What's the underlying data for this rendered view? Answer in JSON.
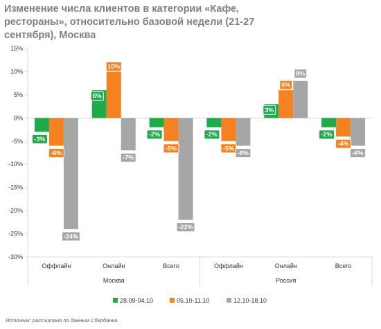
{
  "chart_data": {
    "type": "bar",
    "title": "Изменение числа клиентов в категории «Кафе, рестораны», относительно базовой недели (21-27 сентября), Москва",
    "ylim": [
      -30,
      15
    ],
    "yticks": [
      15,
      10,
      5,
      0,
      -5,
      -10,
      -15,
      -20,
      -25,
      -30
    ],
    "ytick_labels": [
      "15%",
      "10%",
      "5%",
      "0%",
      "-5%",
      "-10%",
      "-15%",
      "-20%",
      "-25%",
      "-30%"
    ],
    "categories": [
      "Оффлайн",
      "Онлайн",
      "Всего",
      "Оффлайн",
      "Онлайн",
      "Всего"
    ],
    "groups": [
      {
        "label": "Москва",
        "span": 3
      },
      {
        "label": "Россия",
        "span": 3
      }
    ],
    "series": [
      {
        "name": "28.09-04.10",
        "color": "#1faa4b",
        "values": [
          -3,
          6,
          -2,
          -2,
          3,
          -2
        ],
        "value_labels": [
          "-3%",
          "6%",
          "-2%",
          "-2%",
          "3%",
          "-2%"
        ]
      },
      {
        "name": "05.10-11.10",
        "color": "#f58220",
        "values": [
          -6,
          10,
          -5,
          -5,
          6,
          -4
        ],
        "value_labels": [
          "-6%",
          "10%",
          "-5%",
          "-5%",
          "6%",
          "-4%"
        ]
      },
      {
        "name": "12.10-18.10",
        "color": "#a6a6a6",
        "values": [
          -24,
          -7,
          -22,
          -6,
          8,
          -6
        ],
        "value_labels": [
          "-24%",
          "-7%",
          "-22%",
          "-6%",
          "8%",
          "-6%"
        ]
      }
    ],
    "legend_position": "bottom",
    "grid": false,
    "source": "Источник: рассчитано по данным Сбербанка"
  }
}
